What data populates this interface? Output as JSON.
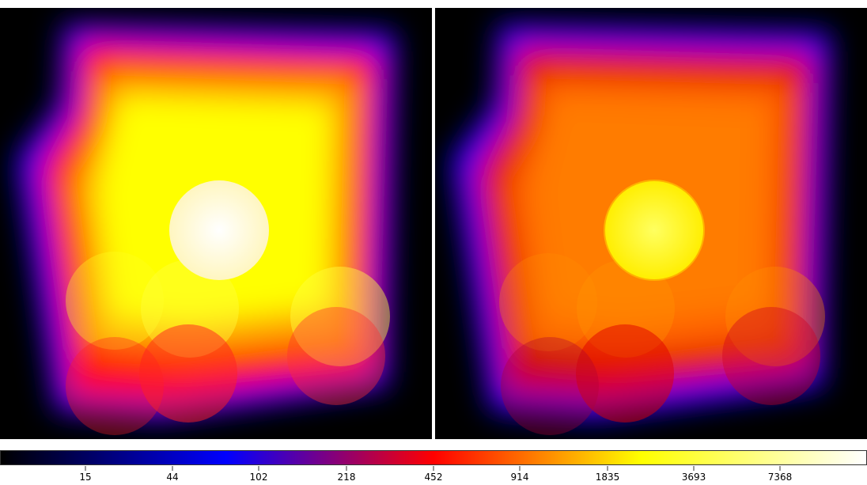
{
  "colormap": {
    "stops": [
      "#000000",
      "#0000ff",
      "#ff0000",
      "#ffff00",
      "#ffffff"
    ],
    "tick_labels": [
      "15",
      "44",
      "102",
      "218",
      "452",
      "914",
      "1835",
      "3693",
      "7368"
    ]
  },
  "panels": {
    "left": {
      "fill_high": "#ffff00",
      "fill_mid": "#ff8c00",
      "core": "#fffbe8"
    },
    "right": {
      "fill_high": "#ff8000",
      "fill_mid": "#ff4000",
      "core": "#ffff00"
    }
  }
}
